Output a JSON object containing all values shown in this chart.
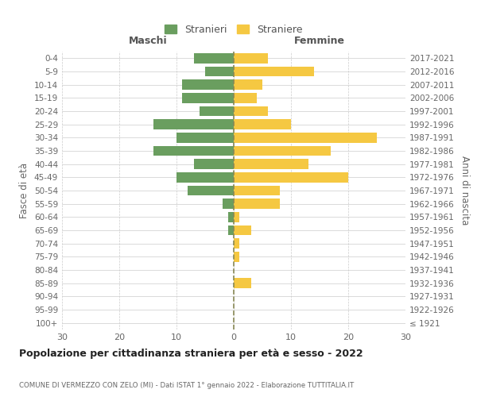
{
  "age_groups": [
    "100+",
    "95-99",
    "90-94",
    "85-89",
    "80-84",
    "75-79",
    "70-74",
    "65-69",
    "60-64",
    "55-59",
    "50-54",
    "45-49",
    "40-44",
    "35-39",
    "30-34",
    "25-29",
    "20-24",
    "15-19",
    "10-14",
    "5-9",
    "0-4"
  ],
  "birth_years": [
    "≤ 1921",
    "1922-1926",
    "1927-1931",
    "1932-1936",
    "1937-1941",
    "1942-1946",
    "1947-1951",
    "1952-1956",
    "1957-1961",
    "1962-1966",
    "1967-1971",
    "1972-1976",
    "1977-1981",
    "1982-1986",
    "1987-1991",
    "1992-1996",
    "1997-2001",
    "2002-2006",
    "2007-2011",
    "2012-2016",
    "2017-2021"
  ],
  "males": [
    0,
    0,
    0,
    0,
    0,
    0,
    0,
    1,
    1,
    2,
    8,
    10,
    7,
    14,
    10,
    14,
    6,
    9,
    9,
    5,
    7
  ],
  "females": [
    0,
    0,
    0,
    3,
    0,
    1,
    1,
    3,
    1,
    8,
    8,
    20,
    13,
    17,
    25,
    10,
    6,
    4,
    5,
    14,
    6
  ],
  "male_color": "#6a9e5f",
  "female_color": "#f5c842",
  "grid_color": "#cccccc",
  "bg_color": "#ffffff",
  "center_line_color": "#888855",
  "xlim": 30,
  "title": "Popolazione per cittadinanza straniera per età e sesso - 2022",
  "subtitle": "COMUNE DI VERMEZZO CON ZELO (MI) - Dati ISTAT 1° gennaio 2022 - Elaborazione TUTTITALIA.IT",
  "ylabel_left": "Fasce di età",
  "ylabel_right": "Anni di nascita",
  "header_left": "Maschi",
  "header_right": "Femmine",
  "legend_male": "Stranieri",
  "legend_female": "Straniere"
}
